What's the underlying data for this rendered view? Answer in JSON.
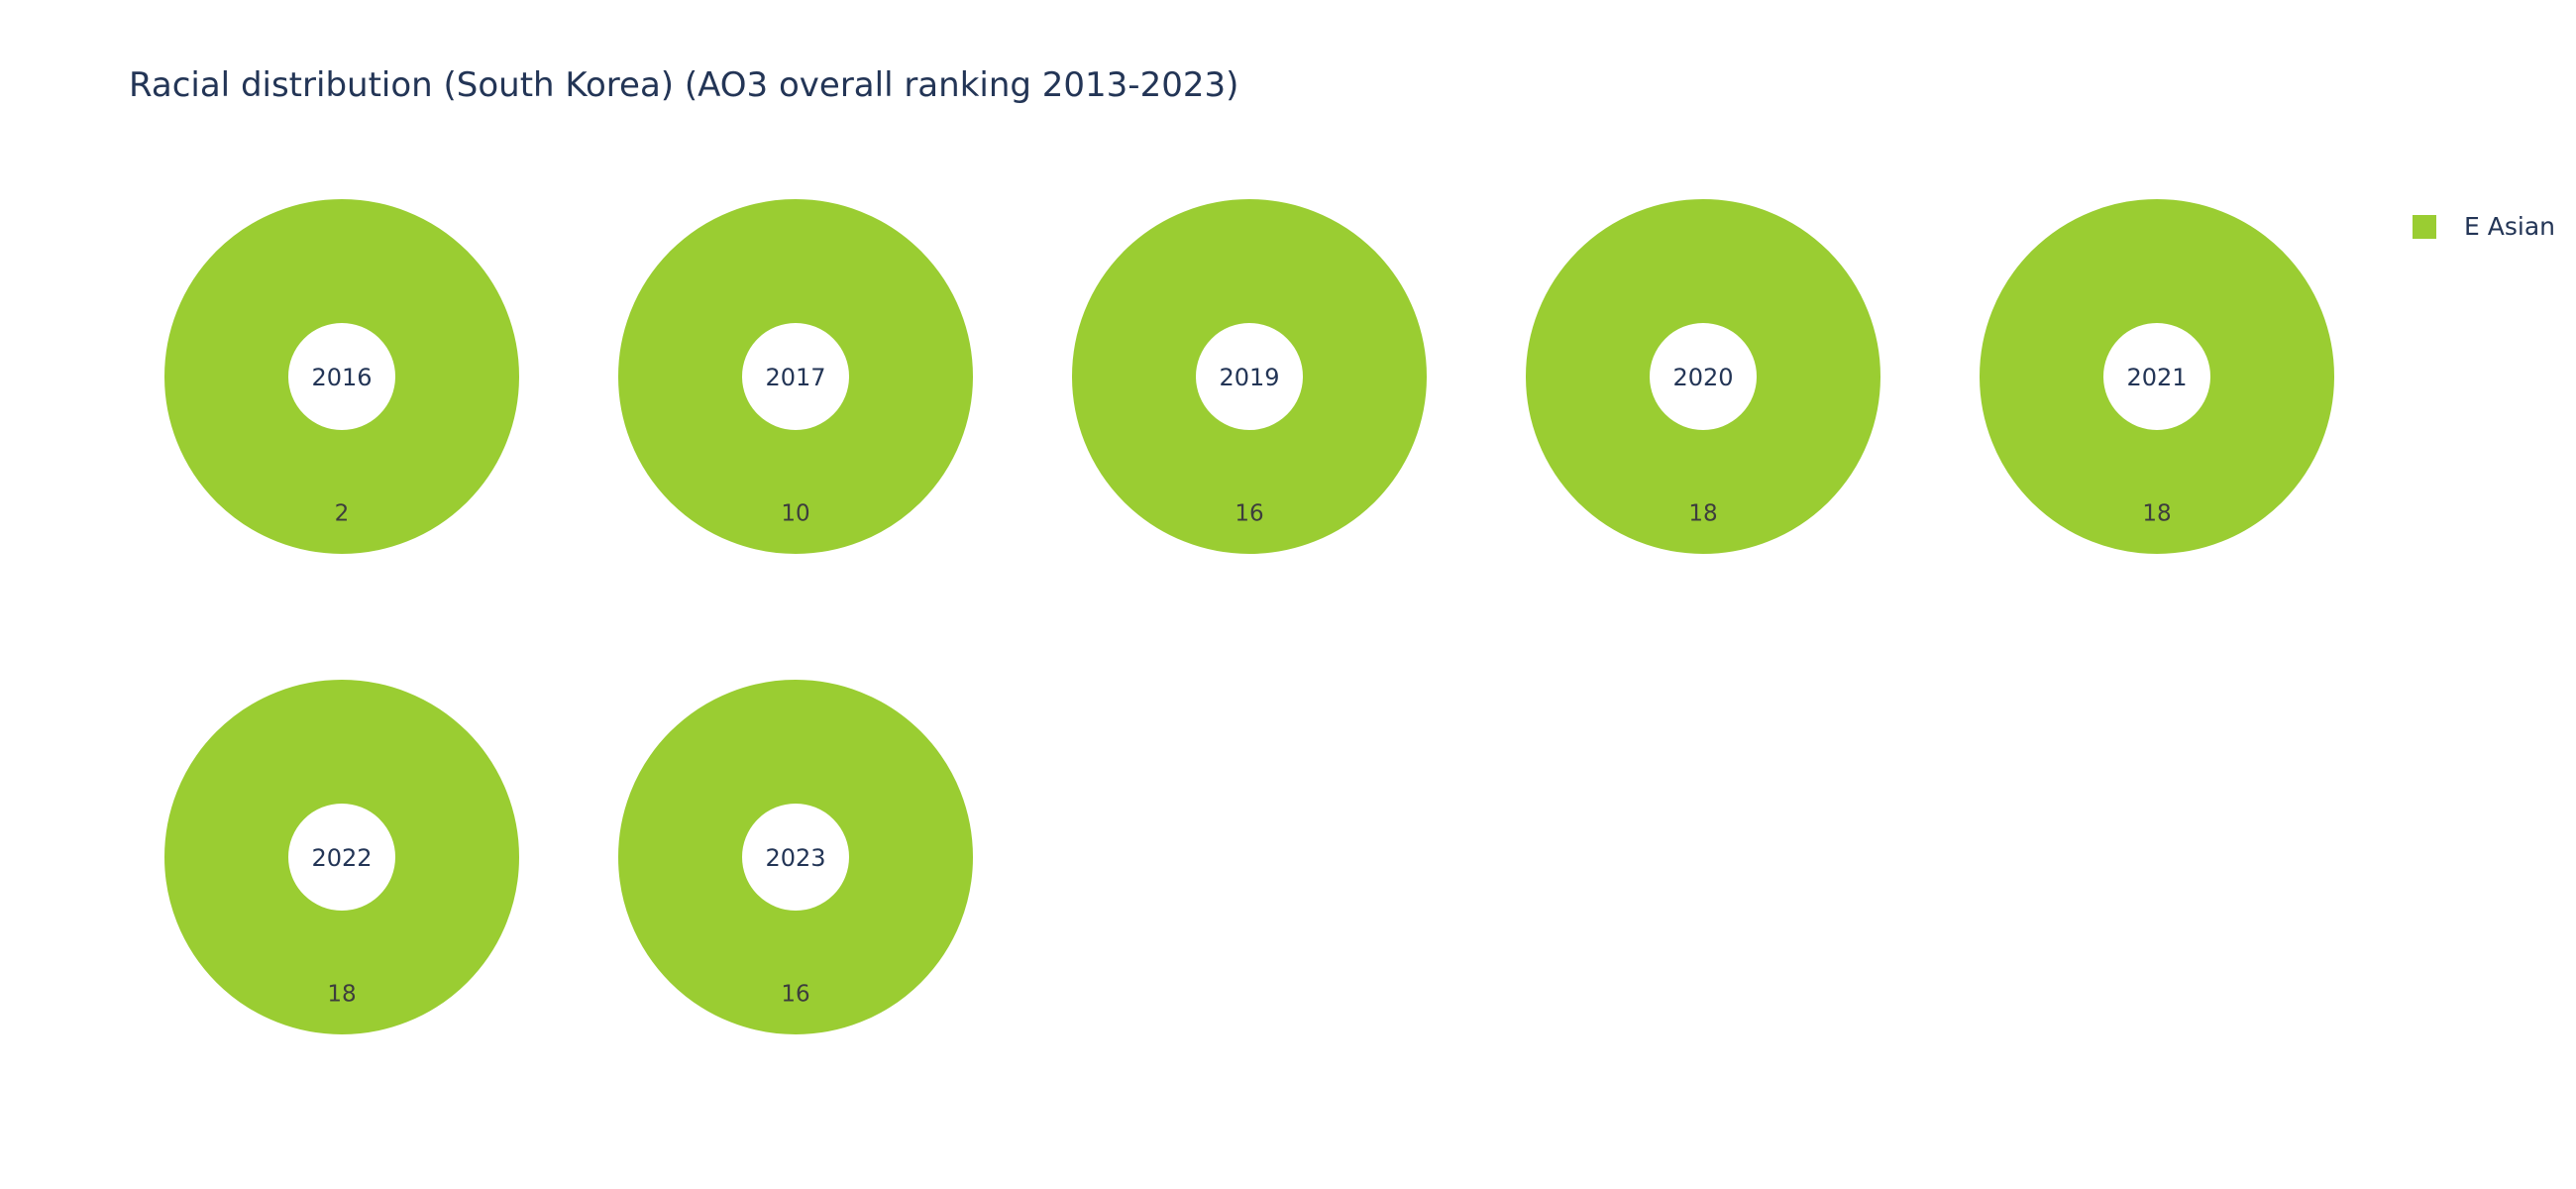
{
  "chart_data": {
    "type": "pie",
    "title": "Racial distribution (South Korea) (AO3 overall ranking 2013-2023)",
    "legend": {
      "placement": "top-right",
      "entries": [
        {
          "name": "E Asian",
          "color": "#9acd32"
        }
      ]
    },
    "panels": [
      {
        "year": "2016",
        "slices": [
          {
            "name": "E Asian",
            "value": 2
          }
        ]
      },
      {
        "year": "2017",
        "slices": [
          {
            "name": "E Asian",
            "value": 10
          }
        ]
      },
      {
        "year": "2019",
        "slices": [
          {
            "name": "E Asian",
            "value": 16
          }
        ]
      },
      {
        "year": "2020",
        "slices": [
          {
            "name": "E Asian",
            "value": 18
          }
        ]
      },
      {
        "year": "2021",
        "slices": [
          {
            "name": "E Asian",
            "value": 18
          }
        ]
      },
      {
        "year": "2022",
        "slices": [
          {
            "name": "E Asian",
            "value": 18
          }
        ]
      },
      {
        "year": "2023",
        "slices": [
          {
            "name": "E Asian",
            "value": 16
          }
        ]
      }
    ]
  },
  "colors": {
    "title_text": "#233556",
    "value_text": "#3d3d3d"
  }
}
